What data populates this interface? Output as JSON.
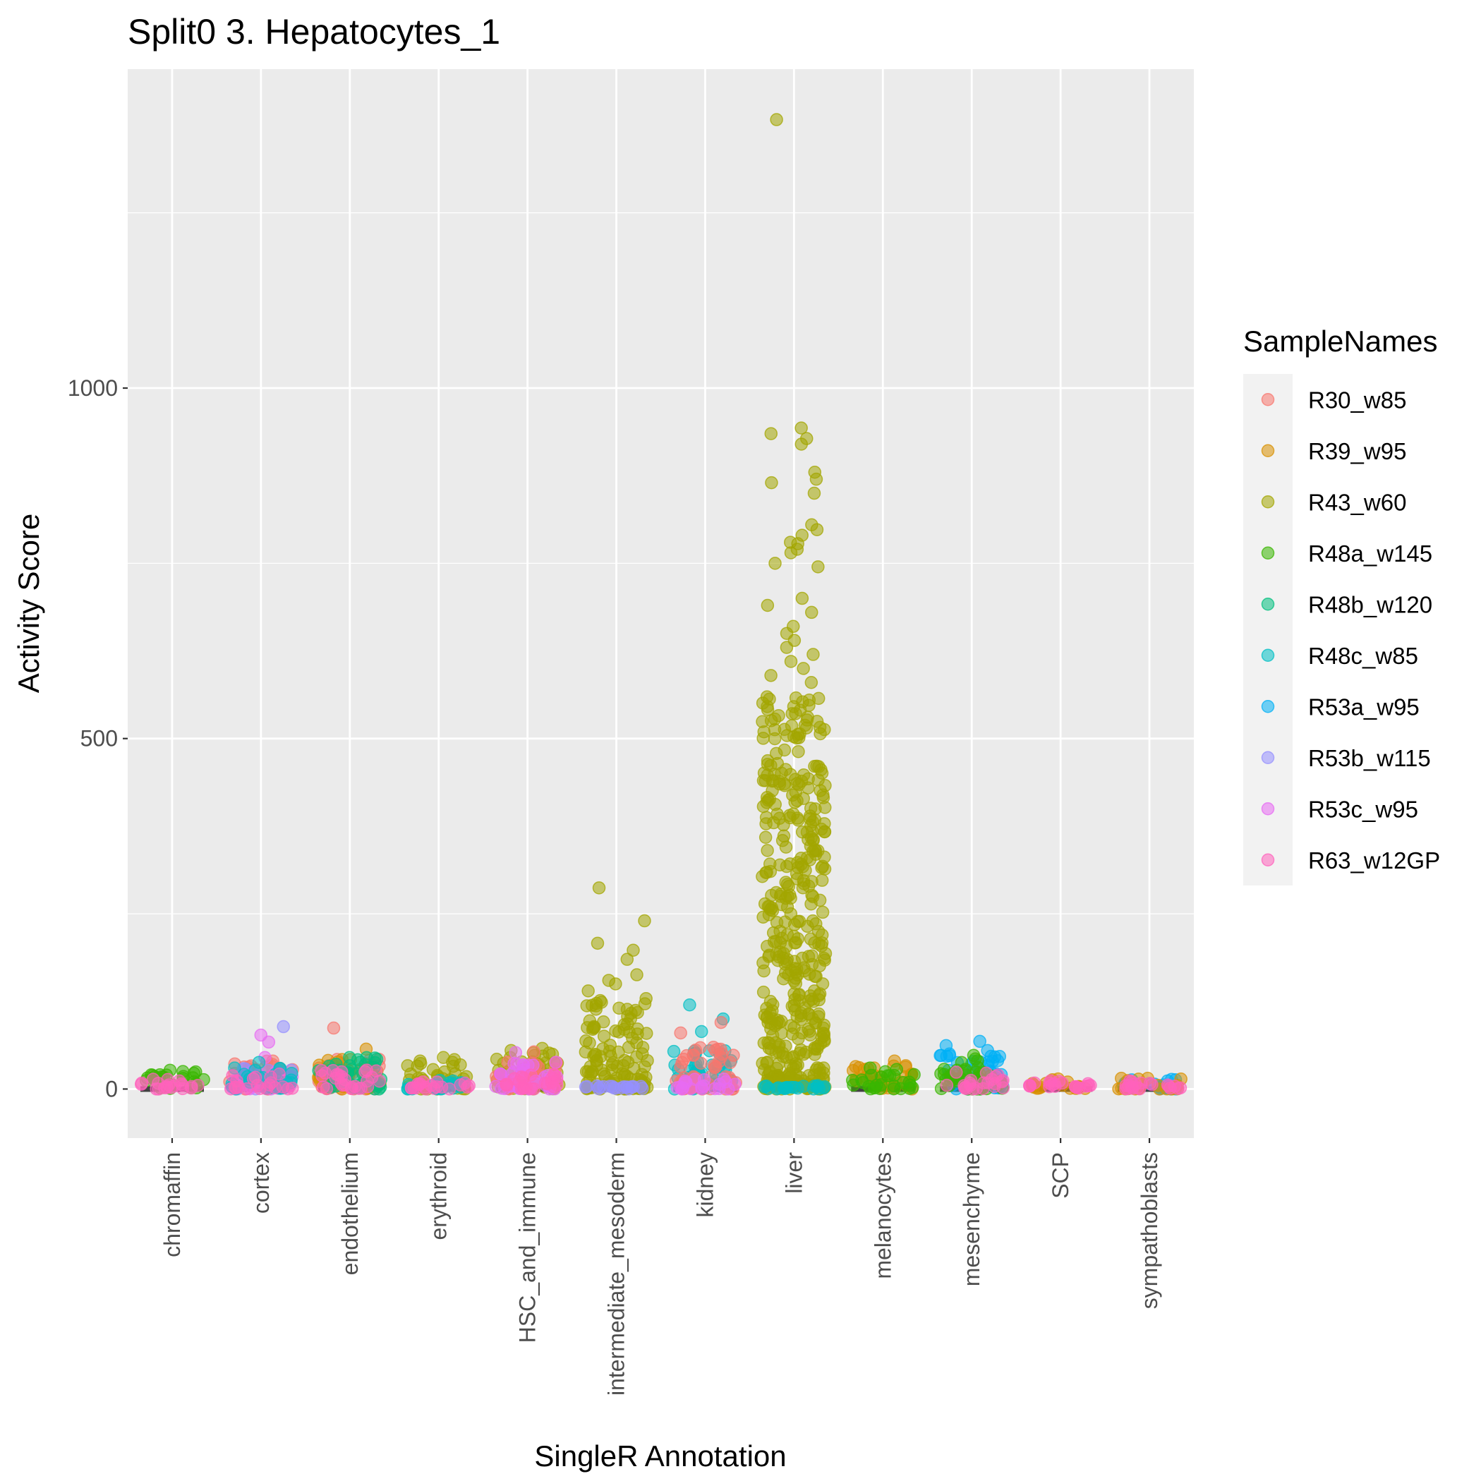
{
  "chart_data": {
    "type": "scatter",
    "title": "Split0 3. Hepatocytes_1",
    "xlabel": "SingleR Annotation",
    "ylabel": "Activity Score",
    "categories": [
      "chromaffin",
      "cortex",
      "endothelium",
      "erythroid",
      "HSC_and_immune",
      "intermediate_mesoderm",
      "kidney",
      "liver",
      "melanocytes",
      "mesenchyme",
      "SCP",
      "sympathoblasts"
    ],
    "y_ticks": [
      0,
      500,
      1000
    ],
    "y_tick_labels": [
      "0",
      "500",
      "1000"
    ],
    "ylim": [
      -70,
      1455
    ],
    "grid": true,
    "legend": {
      "title": "SampleNames",
      "position": "right",
      "entries": [
        {
          "name": "R30_w85",
          "color": "#F8766D"
        },
        {
          "name": "R39_w95",
          "color": "#D89000"
        },
        {
          "name": "R43_w60",
          "color": "#A3A500"
        },
        {
          "name": "R48a_w145",
          "color": "#39B600"
        },
        {
          "name": "R48b_w120",
          "color": "#00BF7D"
        },
        {
          "name": "R48c_w85",
          "color": "#00BFC4"
        },
        {
          "name": "R53a_w95",
          "color": "#00B0F6"
        },
        {
          "name": "R53b_w115",
          "color": "#9590FF"
        },
        {
          "name": "R53c_w95",
          "color": "#E76BF3"
        },
        {
          "name": "R63_w12GP",
          "color": "#FF62BC"
        }
      ]
    },
    "point_groups": [
      {
        "category": "chromaffin",
        "sample": "R48a_w145",
        "max": 28,
        "outliers": [
          25,
          20,
          18
        ]
      },
      {
        "category": "chromaffin",
        "sample": "R63_w12GP",
        "max": 15,
        "outliers": []
      },
      {
        "category": "cortex",
        "sample": "R30_w85",
        "max": 40,
        "outliers": [
          40,
          32
        ]
      },
      {
        "category": "cortex",
        "sample": "R53b_w115",
        "max": 30,
        "outliers": [
          89
        ]
      },
      {
        "category": "cortex",
        "sample": "R53c_w95",
        "max": 30,
        "outliers": [
          77,
          67,
          45
        ]
      },
      {
        "category": "cortex",
        "sample": "R48c_w85",
        "max": 30,
        "outliers": [
          38,
          30
        ]
      },
      {
        "category": "cortex",
        "sample": "R63_w12GP",
        "max": 22,
        "outliers": []
      },
      {
        "category": "endothelium",
        "sample": "R30_w85",
        "max": 45,
        "outliers": [
          87
        ]
      },
      {
        "category": "endothelium",
        "sample": "R39_w95",
        "max": 45,
        "outliers": [
          57
        ]
      },
      {
        "category": "endothelium",
        "sample": "R48b_w120",
        "max": 45,
        "outliers": [
          45
        ]
      },
      {
        "category": "endothelium",
        "sample": "R63_w12GP",
        "max": 30,
        "outliers": []
      },
      {
        "category": "erythroid",
        "sample": "R43_w60",
        "max": 40,
        "outliers": [
          45,
          42,
          40
        ]
      },
      {
        "category": "erythroid",
        "sample": "R48c_w85",
        "max": 15,
        "outliers": []
      },
      {
        "category": "erythroid",
        "sample": "R63_w12GP",
        "max": 12,
        "outliers": []
      },
      {
        "category": "HSC_and_immune",
        "sample": "R43_w60",
        "max": 55,
        "outliers": [
          58,
          55
        ]
      },
      {
        "category": "HSC_and_immune",
        "sample": "R30_w85",
        "max": 40,
        "outliers": [
          53
        ]
      },
      {
        "category": "HSC_and_immune",
        "sample": "R53c_w95",
        "max": 40,
        "outliers": [
          52
        ]
      },
      {
        "category": "HSC_and_immune",
        "sample": "R63_w12GP",
        "max": 25,
        "outliers": []
      },
      {
        "category": "intermediate_mesoderm",
        "sample": "R43_w60",
        "max": 130,
        "outliers": [
          287,
          240,
          208,
          198,
          185,
          163,
          155,
          150,
          140
        ]
      },
      {
        "category": "intermediate_mesoderm",
        "sample": "R53b_w115",
        "max": 5,
        "outliers": []
      },
      {
        "category": "kidney",
        "sample": "R48c_w85",
        "max": 55,
        "outliers": [
          120,
          100,
          82
        ]
      },
      {
        "category": "kidney",
        "sample": "R30_w85",
        "max": 60,
        "outliers": [
          95,
          80
        ]
      },
      {
        "category": "kidney",
        "sample": "R53c_w95",
        "max": 15,
        "outliers": []
      },
      {
        "category": "liver",
        "sample": "R43_w60",
        "max": 560,
        "outliers": [
          1383,
          943,
          935,
          928,
          920,
          880,
          870,
          865,
          850,
          805,
          798,
          790,
          780,
          778,
          770,
          765,
          750,
          745,
          700,
          690,
          680,
          660,
          650,
          640,
          630,
          620,
          610,
          600,
          590,
          580
        ]
      },
      {
        "category": "liver",
        "sample": "R48c_w85",
        "max": 5,
        "outliers": []
      },
      {
        "category": "melanocytes",
        "sample": "R39_w95",
        "max": 35,
        "outliers": [
          40,
          32
        ]
      },
      {
        "category": "melanocytes",
        "sample": "R48a_w145",
        "max": 30,
        "outliers": [
          30
        ]
      },
      {
        "category": "mesenchyme",
        "sample": "R53a_w95",
        "max": 50,
        "outliers": [
          68,
          62,
          55
        ]
      },
      {
        "category": "mesenchyme",
        "sample": "R48a_w145",
        "max": 45,
        "outliers": [
          48
        ]
      },
      {
        "category": "mesenchyme",
        "sample": "R63_w12GP",
        "max": 25,
        "outliers": []
      },
      {
        "category": "SCP",
        "sample": "R39_w95",
        "max": 15,
        "outliers": []
      },
      {
        "category": "SCP",
        "sample": "R63_w12GP",
        "max": 12,
        "outliers": []
      },
      {
        "category": "sympathoblasts",
        "sample": "R53a_w95",
        "max": 15,
        "outliers": []
      },
      {
        "category": "sympathoblasts",
        "sample": "R39_w95",
        "max": 18,
        "outliers": []
      },
      {
        "category": "sympathoblasts",
        "sample": "R63_w12GP",
        "max": 12,
        "outliers": []
      }
    ]
  }
}
